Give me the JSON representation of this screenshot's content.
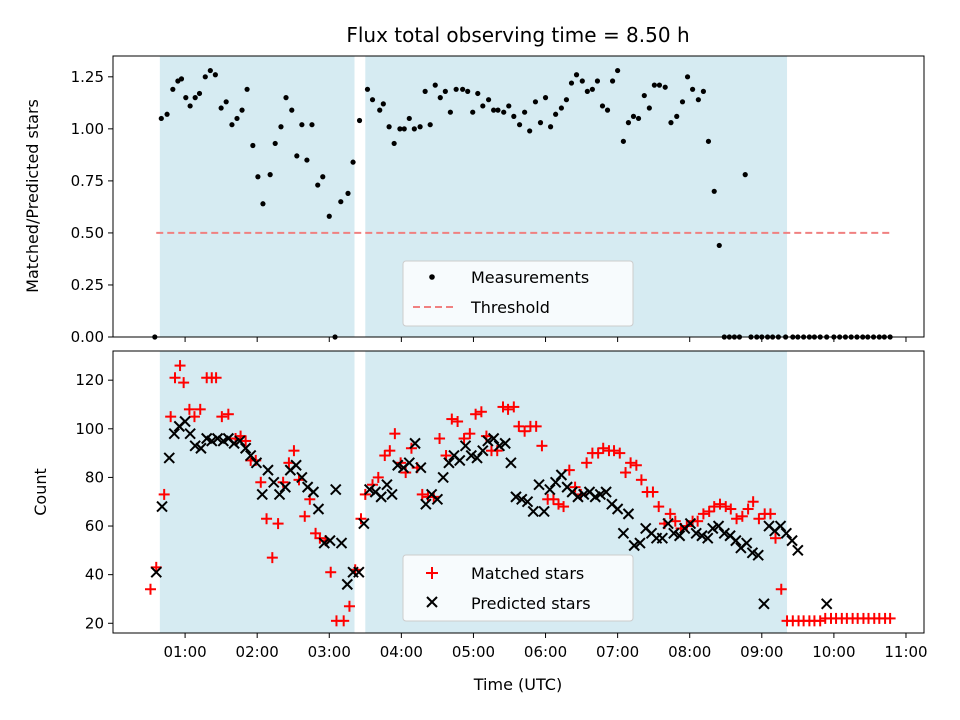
{
  "chart_data": [
    {
      "type": "scatter",
      "title": "Flux total observing time = 8.50 h",
      "xlabel": "",
      "ylabel": "Matched/Predicted stars",
      "xlim": [
        0.0,
        11.25
      ],
      "ylim": [
        0.0,
        1.35
      ],
      "yticks": [
        0.0,
        0.25,
        0.5,
        0.75,
        1.0,
        1.25
      ],
      "ytick_labels": [
        "0.00",
        "0.25",
        "0.50",
        "0.75",
        "1.00",
        "1.25"
      ],
      "shaded_intervals": [
        [
          0.65,
          3.35
        ],
        [
          3.5,
          9.35
        ]
      ],
      "threshold": {
        "label": "Threshold",
        "value": 0.5,
        "x_range": [
          0.6,
          10.8
        ],
        "color": "#f08080"
      },
      "legend": {
        "placement": "lower-center",
        "entries": [
          "Measurements",
          "Threshold"
        ]
      },
      "series": [
        {
          "name": "Measurements",
          "color": "#000000",
          "marker": "dot",
          "x": [
            0.58,
            0.67,
            0.75,
            0.83,
            0.9,
            0.95,
            1.01,
            1.07,
            1.14,
            1.2,
            1.28,
            1.35,
            1.42,
            1.5,
            1.57,
            1.65,
            1.72,
            1.79,
            1.86,
            1.94,
            2.01,
            2.08,
            2.18,
            2.25,
            2.33,
            2.4,
            2.48,
            2.55,
            2.62,
            2.69,
            2.76,
            2.84,
            2.91,
            3.0,
            3.08,
            3.16,
            3.26,
            3.33,
            3.42,
            3.53,
            3.6,
            3.7,
            3.75,
            3.83,
            3.9,
            3.98,
            4.04,
            4.11,
            4.18,
            4.26,
            4.33,
            4.4,
            4.47,
            4.54,
            4.61,
            4.68,
            4.76,
            4.85,
            4.92,
            4.99,
            5.06,
            5.13,
            5.21,
            5.28,
            5.34,
            5.42,
            5.49,
            5.56,
            5.64,
            5.71,
            5.78,
            5.86,
            5.93,
            6.0,
            6.07,
            6.14,
            6.22,
            6.29,
            6.36,
            6.43,
            6.51,
            6.58,
            6.65,
            6.72,
            6.79,
            6.86,
            6.93,
            7.0,
            7.08,
            7.15,
            7.22,
            7.29,
            7.37,
            7.44,
            7.51,
            7.58,
            7.66,
            7.74,
            7.82,
            7.9,
            7.97,
            8.04,
            8.12,
            8.19,
            8.26,
            8.34,
            8.41,
            8.48,
            8.55,
            8.62,
            8.69,
            8.77,
            8.85,
            8.93,
            9.0,
            9.08,
            9.15,
            9.23,
            9.33,
            9.43,
            9.5,
            9.58,
            9.66,
            9.73,
            9.81,
            9.9,
            10.0,
            10.08,
            10.16,
            10.24,
            10.32,
            10.4,
            10.47,
            10.55,
            10.63,
            10.7,
            10.78
          ],
          "y": [
            0.0,
            1.05,
            1.07,
            1.19,
            1.23,
            1.24,
            1.15,
            1.11,
            1.15,
            1.17,
            1.25,
            1.28,
            1.26,
            1.1,
            1.13,
            1.02,
            1.05,
            1.09,
            1.19,
            0.92,
            0.77,
            0.64,
            0.78,
            0.93,
            1.01,
            1.15,
            1.09,
            0.87,
            1.02,
            0.85,
            1.02,
            0.73,
            0.77,
            0.58,
            0.0,
            0.65,
            0.69,
            0.84,
            1.04,
            1.19,
            1.14,
            1.09,
            1.12,
            1.01,
            0.93,
            1.0,
            1.0,
            1.05,
            1.0,
            1.01,
            1.18,
            1.02,
            1.21,
            1.15,
            1.18,
            1.08,
            1.19,
            1.19,
            1.18,
            1.08,
            1.17,
            1.11,
            1.14,
            1.09,
            1.09,
            1.08,
            1.11,
            1.06,
            1.02,
            1.08,
            0.99,
            1.13,
            1.03,
            1.15,
            1.01,
            1.07,
            1.1,
            1.14,
            1.22,
            1.26,
            1.23,
            1.18,
            1.19,
            1.23,
            1.11,
            1.09,
            1.23,
            1.28,
            0.94,
            1.03,
            1.06,
            1.05,
            1.16,
            1.1,
            1.21,
            1.21,
            1.2,
            1.03,
            1.06,
            1.13,
            1.25,
            1.19,
            1.14,
            1.18,
            0.94,
            0.7,
            0.44,
            0.0,
            0.0,
            0.0,
            0.0,
            0.78,
            0.0,
            0.0,
            0.0,
            0.0,
            0.0,
            0.0,
            0.0,
            0.0,
            0.0,
            0.0,
            0.0,
            0.0,
            0.0,
            0.0,
            0.0,
            0.0,
            0.0,
            0.0,
            0.0,
            0.0,
            0.0,
            0.0,
            0.0,
            0.0,
            0.0
          ]
        }
      ]
    },
    {
      "type": "scatter",
      "title": "",
      "xlabel": "Time (UTC)",
      "ylabel": "Count",
      "xlim": [
        0.0,
        11.25
      ],
      "ylim": [
        16,
        132
      ],
      "xticks": [
        1,
        2,
        3,
        4,
        5,
        6,
        7,
        8,
        9,
        10,
        11
      ],
      "xtick_labels": [
        "01:00",
        "02:00",
        "03:00",
        "04:00",
        "05:00",
        "06:00",
        "07:00",
        "08:00",
        "09:00",
        "10:00",
        "11:00"
      ],
      "yticks": [
        20,
        40,
        60,
        80,
        100,
        120
      ],
      "ytick_labels": [
        "20",
        "40",
        "60",
        "80",
        "100",
        "120"
      ],
      "shaded_intervals": [
        [
          0.65,
          3.35
        ],
        [
          3.5,
          9.35
        ]
      ],
      "legend": {
        "placement": "lower-center",
        "entries": [
          "Matched stars",
          "Predicted stars"
        ]
      },
      "series": [
        {
          "name": "Matched stars",
          "color": "#ff0000",
          "marker": "plus",
          "x": [
            0.52,
            0.6,
            0.71,
            0.8,
            0.86,
            0.93,
            0.98,
            1.06,
            1.13,
            1.21,
            1.3,
            1.37,
            1.43,
            1.51,
            1.6,
            1.7,
            1.77,
            1.84,
            1.91,
            1.98,
            2.05,
            2.13,
            2.21,
            2.29,
            2.36,
            2.44,
            2.51,
            2.58,
            2.66,
            2.73,
            2.81,
            2.87,
            2.95,
            3.02,
            3.1,
            3.2,
            3.28,
            3.36,
            3.44,
            3.5,
            3.6,
            3.68,
            3.77,
            3.84,
            3.91,
            3.99,
            4.06,
            4.14,
            4.22,
            4.29,
            4.37,
            4.45,
            4.53,
            4.62,
            4.7,
            4.78,
            4.87,
            4.95,
            5.03,
            5.11,
            5.18,
            5.25,
            5.33,
            5.41,
            5.48,
            5.56,
            5.63,
            5.71,
            5.79,
            5.87,
            5.95,
            6.03,
            6.11,
            6.18,
            6.25,
            6.33,
            6.41,
            6.49,
            6.57,
            6.65,
            6.73,
            6.8,
            6.88,
            6.95,
            7.03,
            7.11,
            7.18,
            7.26,
            7.33,
            7.41,
            7.49,
            7.57,
            7.65,
            7.73,
            7.8,
            7.88,
            7.96,
            8.04,
            8.11,
            8.19,
            8.27,
            8.34,
            8.42,
            8.5,
            8.57,
            8.65,
            8.73,
            8.81,
            8.88,
            8.96,
            9.04,
            9.12,
            9.19,
            9.27,
            9.35,
            9.43,
            9.51,
            9.58,
            9.66,
            9.73,
            9.81,
            9.88,
            9.96,
            10.03,
            10.11,
            10.18,
            10.26,
            10.33,
            10.41,
            10.48,
            10.56,
            10.63,
            10.71,
            10.78
          ],
          "y": [
            34,
            43,
            73,
            105,
            121,
            126,
            119,
            108,
            105,
            108,
            121,
            121,
            121,
            105,
            106,
            96,
            97,
            95,
            87,
            87,
            78,
            63,
            47,
            61,
            78,
            86,
            91,
            79,
            64,
            71,
            57,
            55,
            54,
            41,
            21,
            21,
            27,
            42,
            63,
            73,
            77,
            80,
            89,
            91,
            98,
            86,
            82,
            92,
            84,
            73,
            72,
            72,
            96,
            89,
            104,
            103,
            96,
            98,
            106,
            107,
            97,
            91,
            91,
            109,
            108,
            109,
            101,
            99,
            101,
            101,
            93,
            71,
            71,
            69,
            68,
            83,
            76,
            73,
            86,
            90,
            90,
            92,
            91,
            91,
            90,
            82,
            86,
            85,
            79,
            74,
            74,
            68,
            61,
            65,
            62,
            59,
            60,
            62,
            62,
            65,
            66,
            68,
            69,
            68,
            67,
            63,
            64,
            67,
            70,
            63,
            65,
            65,
            55,
            34,
            21,
            21,
            21,
            21,
            21,
            21,
            21,
            22,
            22,
            22,
            22,
            22,
            22,
            22,
            22,
            22,
            22,
            22,
            22,
            22
          ]
        },
        {
          "name": "Predicted stars",
          "color": "#000000",
          "marker": "x",
          "x": [
            0.6,
            0.68,
            0.78,
            0.85,
            0.92,
            1.0,
            1.07,
            1.14,
            1.22,
            1.3,
            1.37,
            1.45,
            1.53,
            1.6,
            1.68,
            1.76,
            1.84,
            1.91,
            1.99,
            2.07,
            2.15,
            2.23,
            2.31,
            2.39,
            2.46,
            2.54,
            2.62,
            2.7,
            2.78,
            2.85,
            2.93,
            3.01,
            3.09,
            3.17,
            3.25,
            3.33,
            3.41,
            3.48,
            3.56,
            3.64,
            3.72,
            3.8,
            3.87,
            3.95,
            4.03,
            4.11,
            4.19,
            4.27,
            4.34,
            4.42,
            4.5,
            4.58,
            4.66,
            4.73,
            4.81,
            4.89,
            4.97,
            5.05,
            5.13,
            5.2,
            5.28,
            5.36,
            5.44,
            5.52,
            5.59,
            5.67,
            5.75,
            5.83,
            5.91,
            5.98,
            6.06,
            6.14,
            6.22,
            6.3,
            6.37,
            6.45,
            6.53,
            6.61,
            6.69,
            6.76,
            6.84,
            6.92,
            7.0,
            7.08,
            7.15,
            7.23,
            7.31,
            7.39,
            7.47,
            7.54,
            7.62,
            7.7,
            7.78,
            7.86,
            7.93,
            8.01,
            8.09,
            8.17,
            8.25,
            8.32,
            8.4,
            8.48,
            8.56,
            8.64,
            8.71,
            8.79,
            8.87,
            8.95,
            9.03,
            9.1,
            9.18,
            9.26,
            9.34,
            9.42,
            9.5,
            9.9
          ],
          "y": [
            41,
            68,
            88,
            98,
            101,
            103,
            98,
            93,
            92,
            96,
            95,
            96,
            95,
            96,
            94,
            95,
            92,
            89,
            86,
            73,
            83,
            78,
            73,
            76,
            83,
            85,
            80,
            76,
            74,
            67,
            53,
            54,
            75,
            53,
            36,
            41,
            41,
            61,
            75,
            74,
            72,
            77,
            73,
            85,
            84,
            86,
            94,
            84,
            69,
            73,
            71,
            80,
            86,
            89,
            87,
            93,
            89,
            88,
            91,
            95,
            96,
            93,
            94,
            86,
            72,
            71,
            70,
            66,
            77,
            66,
            75,
            78,
            81,
            76,
            74,
            72,
            73,
            74,
            72,
            73,
            74,
            69,
            67,
            57,
            65,
            52,
            53,
            59,
            57,
            55,
            55,
            61,
            57,
            56,
            59,
            61,
            57,
            56,
            55,
            59,
            60,
            57,
            56,
            54,
            51,
            53,
            49,
            48,
            28,
            60,
            58,
            60,
            57,
            54,
            50,
            28
          ]
        }
      ]
    }
  ]
}
